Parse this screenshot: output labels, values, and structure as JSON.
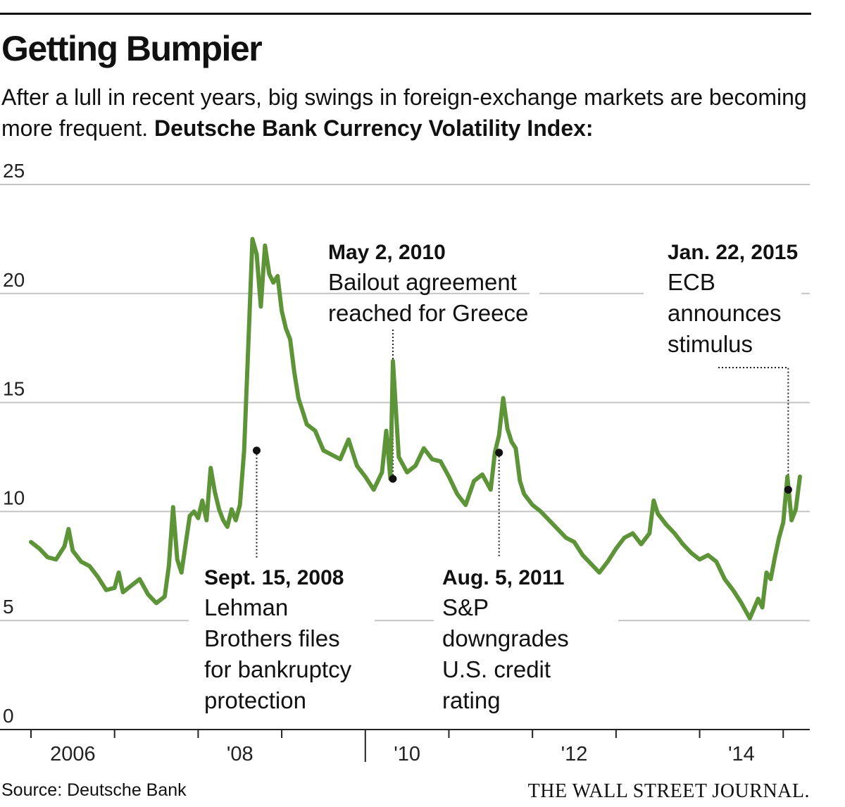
{
  "title": "Getting Bumpier",
  "subtitle": "After a lull in recent years, big swings in foreign-exchange markets are becoming more frequent.",
  "subtitle_bold": "Deutsche Bank Currency Volatility Index:",
  "source": "Source: Deutsche Bank",
  "credit": "THE WALL STREET JOURNAL.",
  "chart_data": {
    "type": "line",
    "title": "Deutsche Bank Currency Volatility Index",
    "xlabel": "",
    "ylabel": "",
    "line_color": "#5e9438",
    "ylim": [
      0,
      25
    ],
    "yticks": [
      "0",
      "5",
      "10",
      "15",
      "20",
      "25"
    ],
    "xlim": [
      2005.9,
      2015.35
    ],
    "xtick_labels": [
      {
        "year": 2006,
        "label": "2006"
      },
      {
        "year": 2008,
        "label": "'08"
      },
      {
        "year": 2010,
        "label": "'10"
      },
      {
        "year": 2012,
        "label": "'12"
      },
      {
        "year": 2014,
        "label": "'14"
      }
    ],
    "series": [
      {
        "name": "Currency Volatility Index",
        "x": [
          2006.0,
          2006.1,
          2006.2,
          2006.3,
          2006.4,
          2006.45,
          2006.5,
          2006.6,
          2006.7,
          2006.8,
          2006.9,
          2007.0,
          2007.05,
          2007.1,
          2007.2,
          2007.3,
          2007.4,
          2007.5,
          2007.6,
          2007.65,
          2007.7,
          2007.75,
          2007.8,
          2007.85,
          2007.9,
          2007.95,
          2008.0,
          2008.05,
          2008.1,
          2008.15,
          2008.2,
          2008.25,
          2008.3,
          2008.35,
          2008.4,
          2008.45,
          2008.5,
          2008.55,
          2008.6,
          2008.65,
          2008.7,
          2008.75,
          2008.8,
          2008.85,
          2008.9,
          2008.95,
          2009.0,
          2009.05,
          2009.1,
          2009.15,
          2009.2,
          2009.25,
          2009.3,
          2009.4,
          2009.5,
          2009.6,
          2009.7,
          2009.8,
          2009.9,
          2010.0,
          2010.1,
          2010.2,
          2010.25,
          2010.3,
          2010.33,
          2010.4,
          2010.5,
          2010.6,
          2010.7,
          2010.8,
          2010.9,
          2011.0,
          2011.1,
          2011.2,
          2011.3,
          2011.4,
          2011.5,
          2011.55,
          2011.6,
          2011.65,
          2011.7,
          2011.75,
          2011.8,
          2011.85,
          2011.9,
          2012.0,
          2012.1,
          2012.2,
          2012.3,
          2012.4,
          2012.5,
          2012.6,
          2012.7,
          2012.8,
          2012.9,
          2013.0,
          2013.1,
          2013.2,
          2013.3,
          2013.4,
          2013.45,
          2013.5,
          2013.6,
          2013.7,
          2013.8,
          2013.9,
          2014.0,
          2014.1,
          2014.2,
          2014.3,
          2014.4,
          2014.5,
          2014.6,
          2014.7,
          2014.75,
          2014.8,
          2014.85,
          2014.9,
          2014.95,
          2015.0,
          2015.05,
          2015.1,
          2015.15,
          2015.2
        ],
        "values": [
          8.6,
          8.3,
          7.9,
          7.8,
          8.4,
          9.2,
          8.2,
          7.7,
          7.5,
          7.0,
          6.4,
          6.5,
          7.2,
          6.3,
          6.6,
          6.9,
          6.2,
          5.8,
          6.1,
          7.5,
          10.2,
          7.8,
          7.2,
          8.5,
          9.8,
          10.0,
          9.7,
          10.5,
          9.6,
          12.0,
          10.9,
          10.1,
          9.6,
          9.3,
          10.1,
          9.6,
          10.3,
          12.8,
          17.6,
          22.5,
          21.8,
          19.4,
          22.2,
          20.9,
          20.5,
          20.8,
          19.2,
          18.4,
          17.9,
          16.4,
          15.2,
          14.6,
          14.0,
          13.7,
          12.8,
          12.6,
          12.4,
          13.3,
          12.1,
          11.6,
          11.0,
          11.8,
          13.7,
          11.5,
          16.9,
          12.5,
          11.8,
          12.1,
          12.9,
          12.4,
          12.3,
          11.6,
          10.8,
          10.3,
          11.4,
          11.7,
          11.0,
          12.7,
          13.5,
          15.2,
          13.8,
          13.2,
          12.9,
          11.4,
          10.8,
          10.3,
          10.0,
          9.6,
          9.2,
          8.8,
          8.6,
          8.0,
          7.6,
          7.2,
          7.7,
          8.3,
          8.8,
          9.0,
          8.5,
          9.0,
          10.5,
          9.9,
          9.4,
          9.0,
          8.5,
          8.1,
          7.8,
          8.0,
          7.7,
          6.9,
          6.4,
          5.8,
          5.1,
          6.0,
          5.6,
          7.2,
          6.9,
          7.9,
          8.8,
          9.5,
          11.6,
          9.6,
          10.1,
          11.6
        ]
      }
    ],
    "annotations": [
      {
        "date": "Sept. 15, 2008",
        "text": "Lehman Brothers files for bankruptcy protection",
        "lines": [
          "Lehman",
          "Brothers files",
          "for bankruptcy",
          "protection"
        ],
        "x": 2008.7,
        "value": 12.8
      },
      {
        "date": "May 2, 2010",
        "text": "Bailout agreement reached for Greece",
        "lines": [
          "Bailout agreement",
          "reached for Greece"
        ],
        "x": 2010.33,
        "value": 11.5
      },
      {
        "date": "Aug. 5, 2011",
        "text": "S&P downgrades U.S. credit rating",
        "lines": [
          "S&P",
          "downgrades",
          "U.S. credit",
          "rating"
        ],
        "x": 2011.6,
        "value": 12.7
      },
      {
        "date": "Jan. 22, 2015",
        "text": "ECB announces stimulus",
        "lines": [
          "ECB",
          "announces",
          "stimulus"
        ],
        "x": 2015.06,
        "value": 11.0
      }
    ]
  }
}
